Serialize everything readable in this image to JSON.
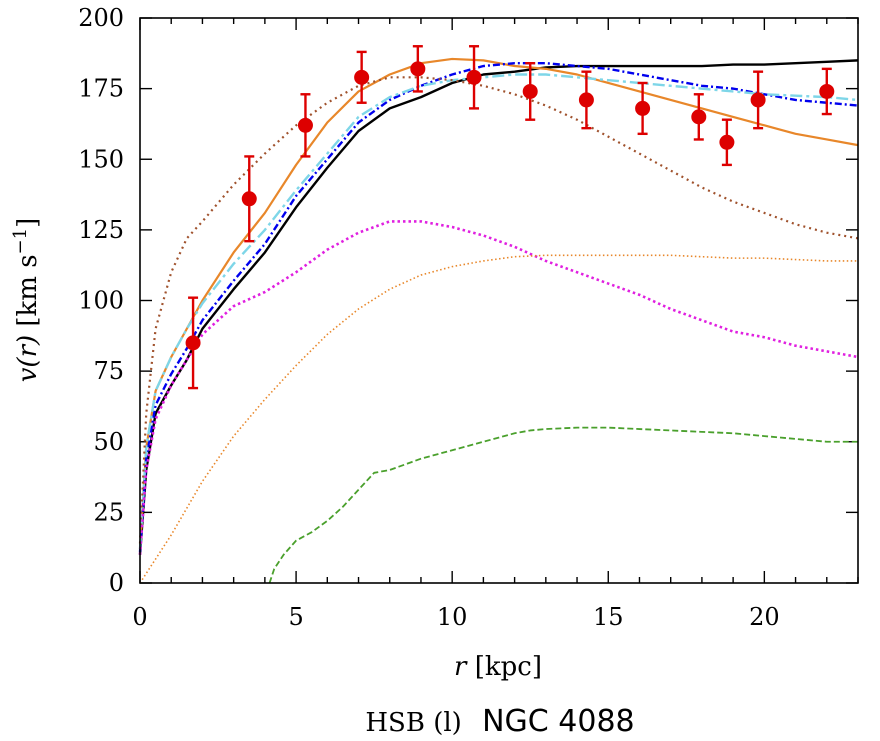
{
  "chart_data": {
    "type": "line",
    "xlabel_var": "r",
    "xlabel_unit": "[kpc]",
    "ylabel_main": "v(r)",
    "ylabel_unit_base": "[km s",
    "ylabel_unit_exp": "−1",
    "ylabel_unit_close": "]",
    "caption_left": "HSB (l)",
    "caption_right": "NGC 4088",
    "xlim": [
      0,
      23
    ],
    "ylim": [
      0,
      200
    ],
    "xticks": [
      0,
      5,
      10,
      15,
      20
    ],
    "yticks": [
      0,
      25,
      50,
      75,
      100,
      125,
      150,
      175,
      200
    ],
    "observed": {
      "name": "observed",
      "color": "#dd0000",
      "points": [
        {
          "r": 1.7,
          "v": 85,
          "err": 16
        },
        {
          "r": 3.5,
          "v": 136,
          "err": 15
        },
        {
          "r": 5.3,
          "v": 162,
          "err": 11
        },
        {
          "r": 7.1,
          "v": 179,
          "err": 9
        },
        {
          "r": 8.9,
          "v": 182,
          "err": 8
        },
        {
          "r": 10.7,
          "v": 179,
          "err": 11
        },
        {
          "r": 12.5,
          "v": 174,
          "err": 10
        },
        {
          "r": 14.3,
          "v": 171,
          "err": 10
        },
        {
          "r": 16.1,
          "v": 168,
          "err": 9
        },
        {
          "r": 17.9,
          "v": 165,
          "err": 8
        },
        {
          "r": 18.8,
          "v": 156,
          "err": 8
        },
        {
          "r": 19.8,
          "v": 171,
          "err": 10
        },
        {
          "r": 22.0,
          "v": 174,
          "err": 8
        }
      ]
    },
    "series": [
      {
        "name": "model-black-solid",
        "color": "#000000",
        "dash": "",
        "width": 2.4,
        "x": [
          0,
          0.2,
          0.5,
          1,
          1.5,
          2,
          3,
          4,
          5,
          6,
          7,
          8,
          9,
          10,
          11,
          12,
          13,
          14,
          15,
          16,
          17,
          18,
          19,
          20,
          21,
          22,
          23
        ],
        "y": [
          10,
          40,
          60,
          70,
          79,
          90,
          104,
          117,
          133,
          147,
          160,
          168,
          172,
          177,
          180,
          181,
          182.5,
          183,
          183,
          183,
          183,
          183,
          183.5,
          183.5,
          184,
          184.5,
          185
        ]
      },
      {
        "name": "model-orange-solid",
        "color": "#e8872a",
        "dash": "",
        "width": 2.2,
        "x": [
          0,
          0.2,
          0.5,
          1,
          1.5,
          2,
          3,
          4,
          5,
          6,
          7,
          8,
          9,
          10,
          11,
          12,
          13,
          14,
          15,
          16,
          17,
          18,
          19,
          20,
          21,
          22,
          23
        ],
        "y": [
          12,
          48,
          68,
          80,
          90,
          100,
          117,
          131,
          148,
          163,
          174,
          180,
          184,
          185.5,
          185,
          183,
          182,
          180,
          177,
          174,
          171,
          168,
          165,
          162,
          159,
          157,
          155
        ]
      },
      {
        "name": "model-blue-dashdot",
        "color": "#0000ee",
        "dash": "7 3 2 3",
        "width": 2.4,
        "x": [
          0,
          0.2,
          0.5,
          1,
          1.5,
          2,
          3,
          4,
          5,
          6,
          7,
          8,
          9,
          10,
          11,
          12,
          13,
          14,
          15,
          16,
          17,
          18,
          19,
          20,
          21,
          22,
          23
        ],
        "y": [
          11,
          44,
          63,
          74,
          83,
          93,
          107,
          120,
          137,
          150,
          163,
          171,
          176,
          180,
          183,
          184,
          184,
          183,
          182,
          180,
          178,
          176,
          175,
          173,
          171,
          170,
          169
        ]
      },
      {
        "name": "model-cyan-dashdot",
        "color": "#7ed6e8",
        "dash": "12 4 3 4",
        "width": 2.4,
        "x": [
          0,
          0.2,
          0.5,
          1,
          1.5,
          2,
          3,
          4,
          5,
          6,
          7,
          8,
          9,
          10,
          11,
          12,
          13,
          14,
          15,
          16,
          17,
          18,
          19,
          20,
          21,
          22,
          23
        ],
        "y": [
          12,
          48,
          68,
          80,
          90,
          99,
          113,
          125,
          139,
          152,
          165,
          172,
          176,
          178,
          179,
          180,
          180,
          179,
          178,
          177,
          176,
          175,
          174,
          173,
          172.5,
          172,
          171
        ]
      },
      {
        "name": "model-brown-dotted",
        "color": "#a0522d",
        "dash": "2 4",
        "width": 2.2,
        "x": [
          0,
          0.2,
          0.5,
          1,
          1.5,
          2,
          3,
          4,
          5,
          6,
          7,
          8,
          9,
          10,
          11,
          12,
          13,
          14,
          15,
          16,
          17,
          18,
          19,
          20,
          21,
          22,
          23
        ],
        "y": [
          14,
          60,
          90,
          110,
          122,
          128,
          141,
          152,
          162,
          170,
          176,
          179,
          179,
          178,
          176,
          173,
          169,
          164,
          158,
          152,
          146,
          140,
          135,
          131,
          127,
          124,
          122
        ]
      },
      {
        "name": "model-magenta-dotted",
        "color": "#e020e0",
        "dash": "2.5 3",
        "width": 2.6,
        "x": [
          0,
          0.2,
          0.5,
          1,
          1.5,
          2,
          3,
          4,
          5,
          6,
          7,
          8,
          9,
          10,
          11,
          12,
          13,
          14,
          15,
          16,
          17,
          18,
          19,
          20,
          21,
          22,
          23
        ],
        "y": [
          10,
          40,
          58,
          70,
          79,
          88,
          98,
          103,
          110,
          118,
          124,
          128,
          128,
          126,
          123,
          119,
          114,
          110,
          106,
          102,
          97,
          93,
          89,
          87,
          84,
          82,
          80
        ]
      },
      {
        "name": "model-orange-dotted",
        "color": "#e8872a",
        "dash": "1.5 2.5",
        "width": 1.6,
        "x": [
          0,
          1,
          2,
          3,
          4,
          5,
          6,
          7,
          8,
          9,
          10,
          11,
          12,
          13,
          14,
          15,
          16,
          17,
          18,
          19,
          20,
          21,
          22,
          23
        ],
        "y": [
          0,
          17,
          36,
          52,
          65,
          77,
          88,
          97,
          104,
          109,
          112,
          114,
          115.5,
          116,
          116,
          116,
          116,
          116,
          115.5,
          115,
          115,
          114.5,
          114,
          114
        ]
      },
      {
        "name": "model-green-dashed",
        "color": "#4aa02c",
        "dash": "6 3",
        "width": 1.8,
        "x": [
          4.15,
          4.3,
          4.6,
          5,
          5.5,
          6,
          6.5,
          7,
          7.5,
          8,
          8.5,
          9,
          10,
          11,
          12,
          12.5,
          13,
          14,
          15,
          16,
          17,
          18,
          19,
          20,
          21,
          22,
          23
        ],
        "y": [
          0,
          5,
          10,
          15,
          18,
          22,
          27,
          33,
          39,
          40,
          42,
          44,
          47,
          50,
          53,
          54,
          54.5,
          55,
          55,
          54.5,
          54,
          53.5,
          53,
          52,
          51,
          50,
          50
        ]
      }
    ]
  }
}
